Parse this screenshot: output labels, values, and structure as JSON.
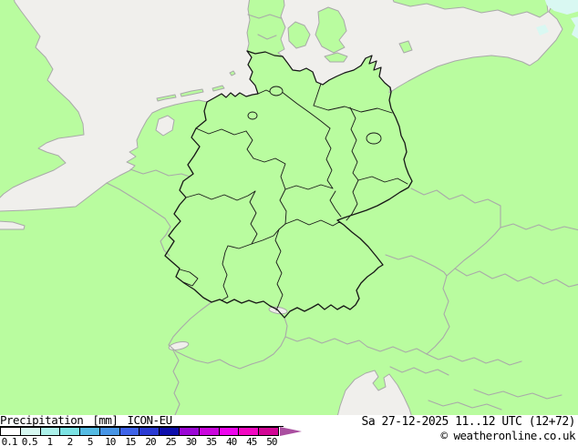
{
  "legend": {
    "title_label": "Precipitation",
    "title_unit": "[mm]",
    "title_model": "ICON-EU",
    "scale": [
      {
        "value": "0.1",
        "color": "#ffffff"
      },
      {
        "value": "0.5",
        "color": "#d7f8f1"
      },
      {
        "value": "1",
        "color": "#acf1ea"
      },
      {
        "value": "2",
        "color": "#7ce3e4"
      },
      {
        "value": "5",
        "color": "#55bbe3"
      },
      {
        "value": "10",
        "color": "#4795e6"
      },
      {
        "value": "15",
        "color": "#3f64e9"
      },
      {
        "value": "20",
        "color": "#2a3ad3"
      },
      {
        "value": "25",
        "color": "#0e0eac"
      },
      {
        "value": "30",
        "color": "#9b07d6"
      },
      {
        "value": "35",
        "color": "#cb06de"
      },
      {
        "value": "40",
        "color": "#ee05ee"
      },
      {
        "value": "45",
        "color": "#f308c2"
      },
      {
        "value": "50",
        "color": "#d20695"
      }
    ],
    "arrow_color": "#aa4fa0"
  },
  "footer": {
    "datetime": "Sa 27-12-2025 11..12 UTC (12+72)",
    "copyright": "© weatheronline.co.uk"
  },
  "map": {
    "region": "Central Europe / Germany",
    "colors": {
      "sea": "#f0efec",
      "land": "#b9fc9f",
      "precipitation_light": "#d9f8f2",
      "border_country": "#a9a9a9",
      "border_germany": "#161616",
      "lake_blue": "#c9e6f2"
    }
  }
}
